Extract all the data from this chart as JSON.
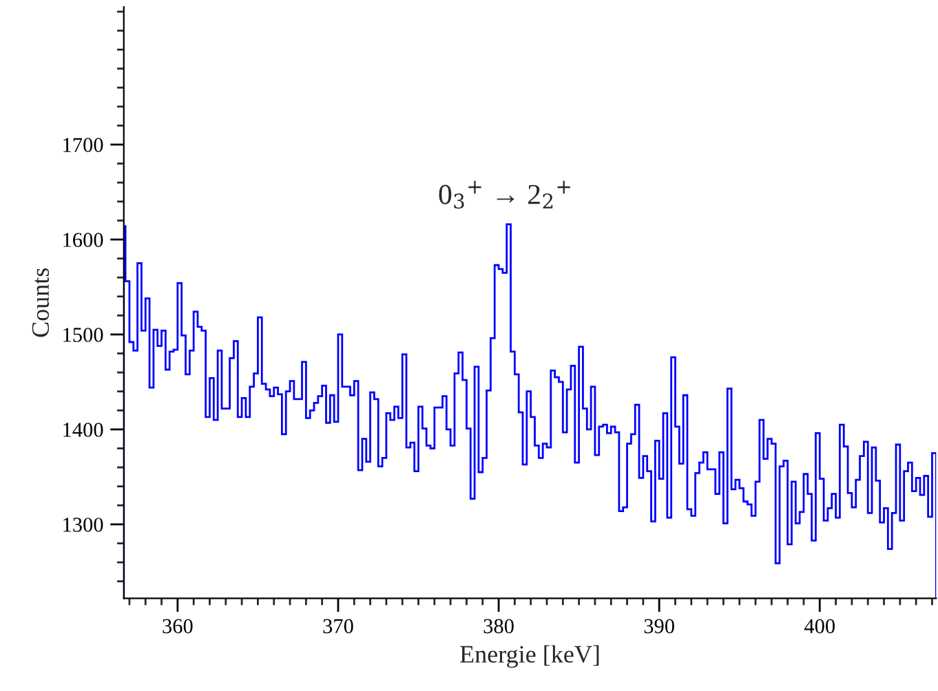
{
  "chart_data": {
    "type": "histogram",
    "xlabel": "Energie [keV]",
    "ylabel": "Counts",
    "color": "#0000ff",
    "annotations": [
      "0$_{3}$$^{+}$ → 2$_{2}$$^{+}$"
    ],
    "bins": [
      356.65,
      356.75,
      357,
      357.25,
      357.5,
      357.75,
      358,
      358.25,
      358.5,
      358.75,
      359,
      359.25,
      359.5,
      359.75,
      360,
      360.25,
      360.5,
      360.75,
      361,
      361.25,
      361.5,
      361.75,
      362,
      362.25,
      362.5,
      362.75,
      363,
      363.25,
      363.5,
      363.75,
      364,
      364.25,
      364.5,
      364.75,
      365,
      365.25,
      365.5,
      365.75,
      366,
      366.25,
      366.5,
      366.75,
      367,
      367.25,
      367.5,
      367.75,
      368,
      368.25,
      368.5,
      368.75,
      369,
      369.25,
      369.5,
      369.75,
      370,
      370.25,
      370.5,
      370.75,
      371,
      371.25,
      371.5,
      371.75,
      372,
      372.25,
      372.5,
      372.75,
      373,
      373.25,
      373.5,
      373.75,
      374,
      374.25,
      374.5,
      374.75,
      375,
      375.25,
      375.5,
      375.75,
      376,
      376.25,
      376.5,
      376.75,
      377,
      377.25,
      377.5,
      377.75,
      378,
      378.25,
      378.5,
      378.75,
      379,
      379.25,
      379.5,
      379.75,
      380,
      380.25,
      380.5,
      380.75,
      381,
      381.25,
      381.5,
      381.75,
      382,
      382.25,
      382.5,
      382.75,
      383,
      383.25,
      383.5,
      383.75,
      384,
      384.25,
      384.5,
      384.75,
      385,
      385.25,
      385.5,
      385.75,
      386,
      386.25,
      386.5,
      386.75,
      387,
      387.25,
      387.5,
      387.75,
      388,
      388.25,
      388.5,
      388.75,
      389,
      389.25,
      389.5,
      389.75,
      390,
      390.25,
      390.5,
      390.75,
      391,
      391.25,
      391.5,
      391.75,
      392,
      392.25,
      392.5,
      392.75,
      393,
      393.25,
      393.5,
      393.75,
      394,
      394.25,
      394.5,
      394.75,
      395,
      395.25,
      395.5,
      395.75,
      396,
      396.25,
      396.5,
      396.75,
      397,
      397.25,
      397.5,
      397.75,
      398,
      398.25,
      398.5,
      398.75,
      399,
      399.25,
      399.5,
      399.75,
      400,
      400.25,
      400.5,
      400.75,
      401,
      401.25,
      401.5,
      401.75,
      402,
      402.25,
      402.5,
      402.75,
      403,
      403.25,
      403.5,
      403.75,
      404,
      404.25,
      404.5,
      404.75,
      405,
      405.25,
      405.5,
      405.75,
      406,
      406.25,
      406.5,
      406.75,
      407,
      407.25
    ],
    "values": [
      1614,
      1556,
      1492,
      1483,
      1575,
      1504,
      1538,
      1444,
      1505,
      1488,
      1504,
      1463,
      1482,
      1484,
      1554,
      1499,
      1458,
      1483,
      1524,
      1508,
      1504,
      1413,
      1454,
      1410,
      1483,
      1422,
      1422,
      1475,
      1493,
      1413,
      1433,
      1413,
      1445,
      1459,
      1518,
      1448,
      1442,
      1435,
      1444,
      1437,
      1395,
      1440,
      1451,
      1432,
      1432,
      1471,
      1412,
      1420,
      1428,
      1435,
      1446,
      1407,
      1436,
      1408,
      1500,
      1445,
      1445,
      1436,
      1451,
      1357,
      1390,
      1366,
      1439,
      1432,
      1361,
      1370,
      1417,
      1410,
      1424,
      1412,
      1479,
      1381,
      1386,
      1356,
      1424,
      1401,
      1383,
      1380,
      1423,
      1423,
      1435,
      1400,
      1383,
      1459,
      1481,
      1452,
      1401,
      1327,
      1466,
      1355,
      1370,
      1441,
      1496,
      1573,
      1569,
      1565,
      1616,
      1482,
      1458,
      1418,
      1363,
      1440,
      1413,
      1383,
      1370,
      1385,
      1381,
      1462,
      1455,
      1450,
      1397,
      1442,
      1467,
      1365,
      1487,
      1422,
      1400,
      1445,
      1373,
      1403,
      1405,
      1396,
      1403,
      1397,
      1314,
      1318,
      1385,
      1395,
      1426,
      1349,
      1372,
      1356,
      1303,
      1388,
      1348,
      1417,
      1307,
      1476,
      1403,
      1364,
      1436,
      1316,
      1309,
      1354,
      1365,
      1376,
      1358,
      1358,
      1332,
      1376,
      1301,
      1443,
      1337,
      1347,
      1338,
      1324,
      1321,
      1309,
      1345,
      1410,
      1369,
      1390,
      1385,
      1259,
      1361,
      1367,
      1279,
      1345,
      1301,
      1313,
      1353,
      1332,
      1283,
      1396,
      1348,
      1304,
      1317,
      1332,
      1307,
      1405,
      1382,
      1333,
      1318,
      1347,
      1372,
      1387,
      1312,
      1381,
      1346,
      1302,
      1317,
      1274,
      1312,
      1384,
      1304,
      1356,
      1365,
      1335,
      1349,
      1331,
      1351,
      1308,
      1375
    ],
    "xlim": [
      356.65,
      407.25
    ],
    "xticks": [
      {
        "value": 357,
        "label": null
      },
      {
        "value": 358,
        "label": null
      },
      {
        "value": 359,
        "label": null
      },
      360,
      {
        "value": 361,
        "label": null
      },
      {
        "value": 362,
        "label": null
      },
      {
        "value": 363,
        "label": null
      },
      {
        "value": 364,
        "label": null
      },
      {
        "value": 365,
        "label": null
      },
      {
        "value": 366,
        "label": null
      },
      {
        "value": 367,
        "label": null
      },
      {
        "value": 368,
        "label": null
      },
      {
        "value": 369,
        "label": null
      },
      370,
      {
        "value": 371,
        "label": null
      },
      {
        "value": 372,
        "label": null
      },
      {
        "value": 373,
        "label": null
      },
      {
        "value": 374,
        "label": null
      },
      {
        "value": 375,
        "label": null
      },
      {
        "value": 376,
        "label": null
      },
      {
        "value": 377,
        "label": null
      },
      {
        "value": 378,
        "label": null
      },
      {
        "value": 379,
        "label": null
      },
      380,
      {
        "value": 381,
        "label": null
      },
      {
        "value": 382,
        "label": null
      },
      {
        "value": 383,
        "label": null
      },
      {
        "value": 384,
        "label": null
      },
      {
        "value": 385,
        "label": null
      },
      {
        "value": 386,
        "label": null
      },
      {
        "value": 387,
        "label": null
      },
      {
        "value": 388,
        "label": null
      },
      {
        "value": 389,
        "label": null
      },
      390,
      {
        "value": 391,
        "label": null
      },
      {
        "value": 392,
        "label": null
      },
      {
        "value": 393,
        "label": null
      },
      {
        "value": 394,
        "label": null
      },
      {
        "value": 395,
        "label": null
      },
      {
        "value": 396,
        "label": null
      },
      {
        "value": 397,
        "label": null
      },
      {
        "value": 398,
        "label": null
      },
      {
        "value": 399,
        "label": null
      },
      400,
      {
        "value": 401,
        "label": null
      },
      {
        "value": 402,
        "label": null
      },
      {
        "value": 403,
        "label": null
      },
      {
        "value": 404,
        "label": null
      },
      {
        "value": 405,
        "label": null
      },
      {
        "value": 406,
        "label": null
      },
      {
        "value": 407,
        "label": null
      }
    ],
    "ylim": [
      1222,
      1845
    ],
    "yticks": [
      {
        "value": 1240,
        "label": null
      },
      {
        "value": 1260,
        "label": null
      },
      {
        "value": 1280,
        "label": null
      },
      1300,
      {
        "value": 1320,
        "label": null
      },
      {
        "value": 1340,
        "label": null
      },
      {
        "value": 1360,
        "label": null
      },
      {
        "value": 1380,
        "label": null
      },
      1400,
      {
        "value": 1420,
        "label": null
      },
      {
        "value": 1440,
        "label": null
      },
      {
        "value": 1460,
        "label": null
      },
      {
        "value": 1480,
        "label": null
      },
      1500,
      {
        "value": 1520,
        "label": null
      },
      {
        "value": 1540,
        "label": null
      },
      {
        "value": 1560,
        "label": null
      },
      {
        "value": 1580,
        "label": null
      },
      1600,
      {
        "value": 1620,
        "label": null
      },
      {
        "value": 1640,
        "label": null
      },
      {
        "value": 1660,
        "label": null
      },
      {
        "value": 1680,
        "label": null
      },
      1700,
      {
        "value": 1720,
        "label": null
      },
      {
        "value": 1740,
        "label": null
      },
      {
        "value": 1760,
        "label": null
      },
      {
        "value": 1780,
        "label": null
      },
      {
        "value": 1800,
        "label": null
      },
      {
        "value": 1820,
        "label": null
      },
      {
        "value": 1840,
        "label": null
      }
    ],
    "grid": false,
    "legend": false
  }
}
